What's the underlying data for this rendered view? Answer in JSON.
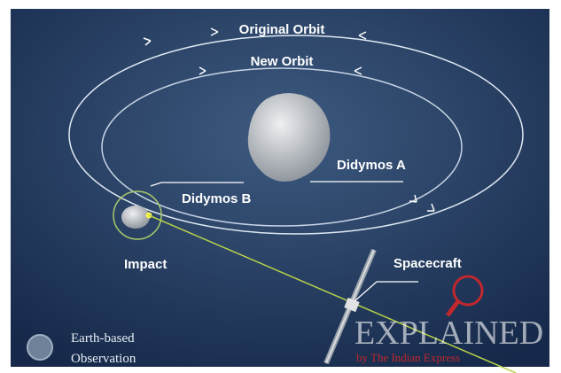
{
  "labels": {
    "original_orbit": "Original Orbit",
    "new_orbit": "New Orbit",
    "didymos_a": "Didymos A",
    "didymos_b": "Didymos B",
    "impact": "Impact",
    "spacecraft": "Spacecraft",
    "earth_based": "Earth-based",
    "observation": "Observation"
  },
  "watermark": {
    "title": "EXPLAINED",
    "subtitle": "by The Indian Express"
  }
}
